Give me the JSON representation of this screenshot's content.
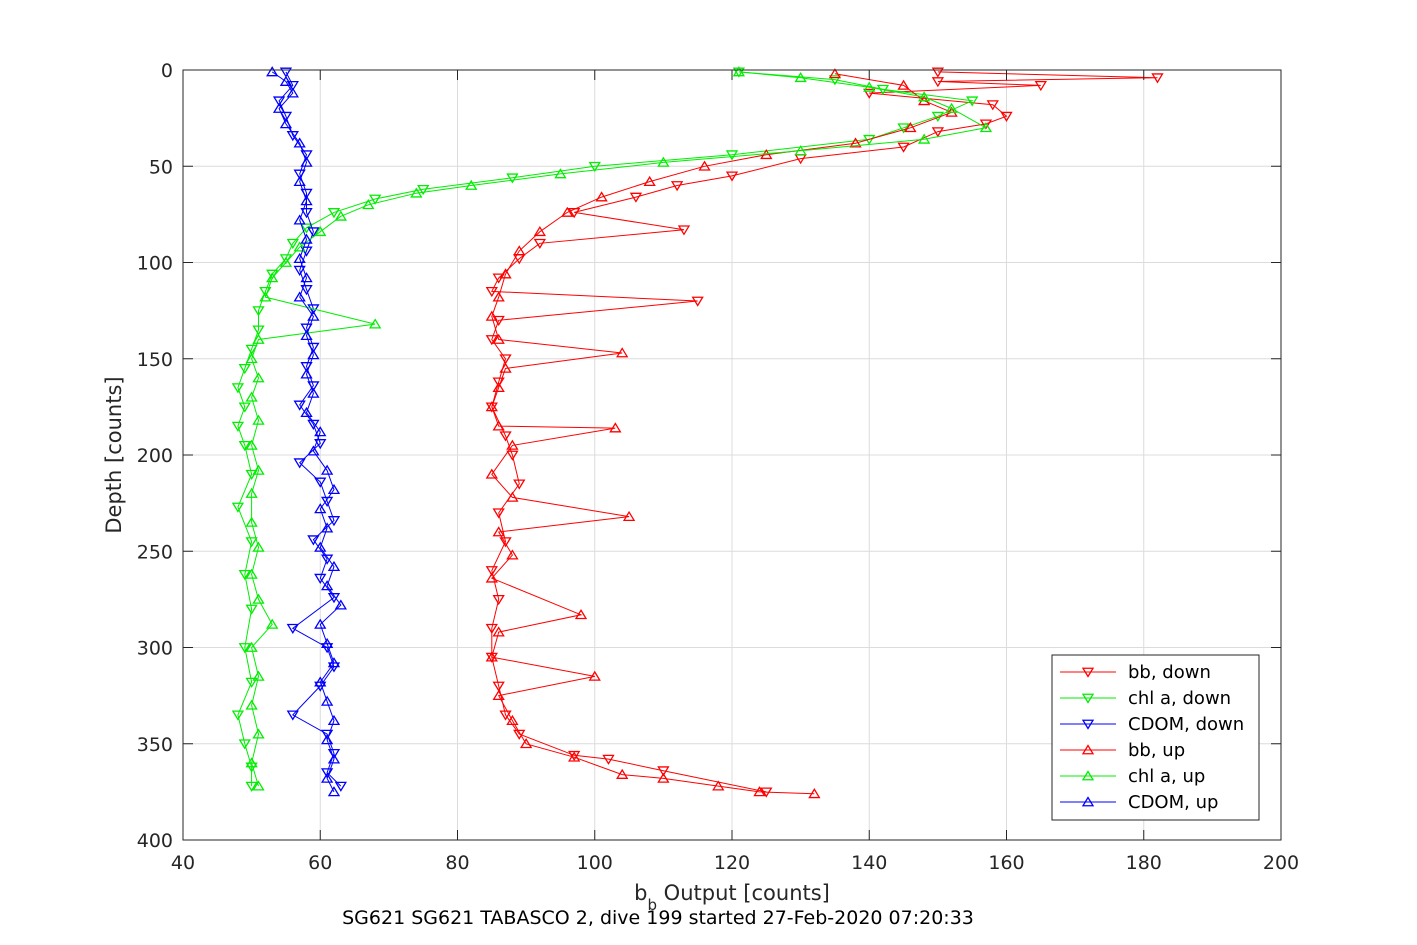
{
  "chart_data": {
    "type": "scatter",
    "x_label": {
      "main": "b",
      "sub": "b",
      "rest": " Output [counts]"
    },
    "y_label": "Depth [counts]",
    "caption": "SG621 SG621 TABASCO 2, dive 199 started 27-Feb-2020 07:20:33",
    "xlim": [
      40,
      200
    ],
    "ylim": [
      0,
      400
    ],
    "y_reversed": true,
    "grid": true,
    "x_ticks": [
      "40",
      "60",
      "80",
      "100",
      "120",
      "140",
      "160",
      "180",
      "200"
    ],
    "y_ticks": [
      "0",
      "50",
      "100",
      "150",
      "200",
      "250",
      "300",
      "350",
      "400"
    ],
    "legend_position": "bottom-right",
    "series": [
      {
        "name": "bb, down",
        "color": "#ff0000",
        "marker": "triangle-down",
        "points": [
          [
            150,
            1
          ],
          [
            182,
            4
          ],
          [
            150,
            6
          ],
          [
            165,
            8
          ],
          [
            140,
            12
          ],
          [
            158,
            18
          ],
          [
            160,
            24
          ],
          [
            157,
            28
          ],
          [
            150,
            32
          ],
          [
            145,
            40
          ],
          [
            130,
            46
          ],
          [
            120,
            55
          ],
          [
            112,
            60
          ],
          [
            106,
            66
          ],
          [
            97,
            74
          ],
          [
            113,
            83
          ],
          [
            92,
            90
          ],
          [
            89,
            98
          ],
          [
            86,
            108
          ],
          [
            85,
            115
          ],
          [
            115,
            120
          ],
          [
            86,
            130
          ],
          [
            85,
            140
          ],
          [
            87,
            150
          ],
          [
            86,
            162
          ],
          [
            85,
            175
          ],
          [
            87,
            190
          ],
          [
            88,
            200
          ],
          [
            89,
            215
          ],
          [
            86,
            230
          ],
          [
            87,
            245
          ],
          [
            85,
            260
          ],
          [
            86,
            275
          ],
          [
            85,
            290
          ],
          [
            85,
            305
          ],
          [
            86,
            320
          ],
          [
            87,
            335
          ],
          [
            89,
            345
          ],
          [
            97,
            356
          ],
          [
            102,
            358
          ],
          [
            110,
            364
          ],
          [
            125,
            375
          ]
        ]
      },
      {
        "name": "chl a, down",
        "color": "#00ee00",
        "marker": "triangle-down",
        "points": [
          [
            121,
            1
          ],
          [
            135,
            5
          ],
          [
            142,
            10
          ],
          [
            155,
            16
          ],
          [
            150,
            24
          ],
          [
            145,
            30
          ],
          [
            140,
            36
          ],
          [
            120,
            44
          ],
          [
            100,
            50
          ],
          [
            88,
            56
          ],
          [
            75,
            62
          ],
          [
            68,
            67
          ],
          [
            62,
            74
          ],
          [
            58,
            82
          ],
          [
            56,
            90
          ],
          [
            55,
            98
          ],
          [
            53,
            106
          ],
          [
            52,
            115
          ],
          [
            51,
            125
          ],
          [
            51,
            135
          ],
          [
            50,
            145
          ],
          [
            49,
            155
          ],
          [
            48,
            165
          ],
          [
            49,
            175
          ],
          [
            48,
            185
          ],
          [
            49,
            195
          ],
          [
            50,
            210
          ],
          [
            48,
            227
          ],
          [
            50,
            245
          ],
          [
            49,
            262
          ],
          [
            50,
            280
          ],
          [
            49,
            300
          ],
          [
            50,
            318
          ],
          [
            48,
            335
          ],
          [
            49,
            350
          ],
          [
            50,
            362
          ],
          [
            50,
            372
          ]
        ]
      },
      {
        "name": "CDOM, down",
        "color": "#0000ff",
        "marker": "triangle-down",
        "points": [
          [
            55,
            1
          ],
          [
            56,
            8
          ],
          [
            54,
            16
          ],
          [
            55,
            24
          ],
          [
            56,
            34
          ],
          [
            58,
            44
          ],
          [
            57,
            54
          ],
          [
            58,
            64
          ],
          [
            58,
            74
          ],
          [
            59,
            84
          ],
          [
            58,
            94
          ],
          [
            57,
            104
          ],
          [
            58,
            114
          ],
          [
            59,
            124
          ],
          [
            58,
            134
          ],
          [
            59,
            144
          ],
          [
            58,
            154
          ],
          [
            59,
            164
          ],
          [
            57,
            174
          ],
          [
            59,
            184
          ],
          [
            60,
            194
          ],
          [
            57,
            204
          ],
          [
            60,
            214
          ],
          [
            61,
            224
          ],
          [
            62,
            234
          ],
          [
            59,
            244
          ],
          [
            61,
            254
          ],
          [
            60,
            264
          ],
          [
            62,
            274
          ],
          [
            56,
            290
          ],
          [
            61,
            300
          ],
          [
            62,
            310
          ],
          [
            60,
            320
          ],
          [
            56,
            335
          ],
          [
            61,
            345
          ],
          [
            62,
            355
          ],
          [
            61,
            365
          ],
          [
            63,
            372
          ]
        ]
      },
      {
        "name": "bb, up",
        "color": "#ff0000",
        "marker": "triangle-up",
        "points": [
          [
            135,
            2
          ],
          [
            145,
            8
          ],
          [
            148,
            16
          ],
          [
            152,
            22
          ],
          [
            146,
            30
          ],
          [
            138,
            38
          ],
          [
            125,
            44
          ],
          [
            116,
            50
          ],
          [
            108,
            58
          ],
          [
            101,
            66
          ],
          [
            96,
            74
          ],
          [
            92,
            84
          ],
          [
            89,
            94
          ],
          [
            87,
            106
          ],
          [
            86,
            118
          ],
          [
            85,
            128
          ],
          [
            86,
            140
          ],
          [
            104,
            147
          ],
          [
            87,
            155
          ],
          [
            86,
            165
          ],
          [
            85,
            175
          ],
          [
            86,
            185
          ],
          [
            103,
            186
          ],
          [
            88,
            195
          ],
          [
            85,
            210
          ],
          [
            88,
            222
          ],
          [
            105,
            232
          ],
          [
            86,
            240
          ],
          [
            88,
            252
          ],
          [
            85,
            264
          ],
          [
            98,
            283
          ],
          [
            86,
            292
          ],
          [
            85,
            305
          ],
          [
            100,
            315
          ],
          [
            86,
            325
          ],
          [
            88,
            338
          ],
          [
            90,
            350
          ],
          [
            97,
            357
          ],
          [
            104,
            366
          ],
          [
            110,
            368
          ],
          [
            118,
            372
          ],
          [
            124,
            375
          ],
          [
            132,
            376
          ]
        ]
      },
      {
        "name": "chl a, up",
        "color": "#00ee00",
        "marker": "triangle-up",
        "points": [
          [
            121,
            1
          ],
          [
            130,
            4
          ],
          [
            140,
            9
          ],
          [
            148,
            14
          ],
          [
            152,
            20
          ],
          [
            157,
            30
          ],
          [
            148,
            36
          ],
          [
            130,
            42
          ],
          [
            110,
            48
          ],
          [
            95,
            54
          ],
          [
            82,
            60
          ],
          [
            74,
            64
          ],
          [
            67,
            70
          ],
          [
            63,
            76
          ],
          [
            60,
            84
          ],
          [
            57,
            92
          ],
          [
            55,
            100
          ],
          [
            53,
            108
          ],
          [
            52,
            118
          ],
          [
            68,
            132
          ],
          [
            51,
            140
          ],
          [
            50,
            150
          ],
          [
            51,
            160
          ],
          [
            50,
            170
          ],
          [
            51,
            182
          ],
          [
            50,
            195
          ],
          [
            51,
            208
          ],
          [
            50,
            220
          ],
          [
            50,
            235
          ],
          [
            51,
            248
          ],
          [
            50,
            262
          ],
          [
            51,
            275
          ],
          [
            53,
            288
          ],
          [
            50,
            300
          ],
          [
            51,
            315
          ],
          [
            50,
            330
          ],
          [
            51,
            345
          ],
          [
            50,
            360
          ],
          [
            51,
            372
          ]
        ]
      },
      {
        "name": "CDOM, up",
        "color": "#0000ff",
        "marker": "triangle-up",
        "points": [
          [
            53,
            1
          ],
          [
            55,
            6
          ],
          [
            56,
            12
          ],
          [
            54,
            20
          ],
          [
            55,
            28
          ],
          [
            57,
            38
          ],
          [
            58,
            48
          ],
          [
            57,
            58
          ],
          [
            58,
            68
          ],
          [
            57,
            78
          ],
          [
            58,
            88
          ],
          [
            57,
            98
          ],
          [
            58,
            108
          ],
          [
            57,
            118
          ],
          [
            59,
            128
          ],
          [
            58,
            138
          ],
          [
            59,
            148
          ],
          [
            58,
            158
          ],
          [
            59,
            168
          ],
          [
            58,
            178
          ],
          [
            60,
            188
          ],
          [
            59,
            198
          ],
          [
            61,
            208
          ],
          [
            62,
            218
          ],
          [
            60,
            228
          ],
          [
            61,
            238
          ],
          [
            60,
            248
          ],
          [
            62,
            258
          ],
          [
            61,
            268
          ],
          [
            63,
            278
          ],
          [
            60,
            288
          ],
          [
            61,
            298
          ],
          [
            62,
            308
          ],
          [
            60,
            318
          ],
          [
            61,
            328
          ],
          [
            62,
            338
          ],
          [
            61,
            348
          ],
          [
            62,
            358
          ],
          [
            61,
            368
          ],
          [
            62,
            375
          ]
        ]
      }
    ]
  }
}
